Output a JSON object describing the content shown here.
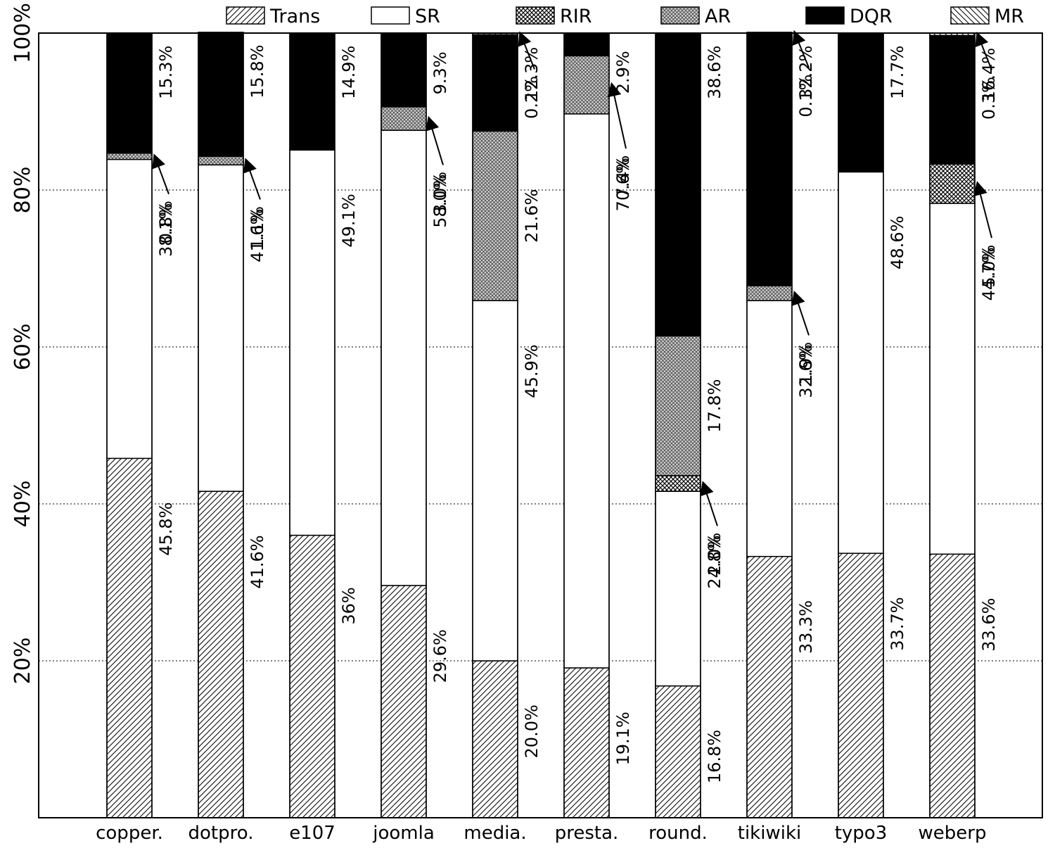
{
  "chart_data": {
    "type": "bar",
    "stacked": true,
    "categories": [
      "copper.",
      "dotpro.",
      "e107",
      "joomla",
      "media.",
      "presta.",
      "round.",
      "tikiwiki",
      "typo3",
      "weberp"
    ],
    "series": [
      {
        "name": "Trans",
        "values": [
          45.8,
          41.6,
          36.0,
          29.6,
          20.0,
          19.1,
          16.8,
          33.3,
          33.7,
          33.6
        ]
      },
      {
        "name": "SR",
        "values": [
          38.1,
          41.6,
          49.1,
          58.0,
          45.9,
          70.6,
          24.8,
          32.6,
          48.6,
          44.7
        ]
      },
      {
        "name": "RIR",
        "values": [
          0,
          0,
          0,
          0,
          0,
          0,
          2.0,
          0,
          0,
          5.0
        ]
      },
      {
        "name": "AR",
        "values": [
          0.8,
          1.1,
          0,
          3.0,
          21.6,
          7.4,
          17.8,
          1.9,
          0,
          0
        ]
      },
      {
        "name": "DQR",
        "values": [
          15.3,
          15.8,
          14.9,
          9.3,
          12.3,
          2.9,
          38.6,
          32.2,
          17.7,
          16.4
        ]
      },
      {
        "name": "MR",
        "values": [
          0,
          0,
          0,
          0,
          0.2,
          0,
          0,
          0.1,
          0,
          0.3
        ]
      }
    ],
    "data_labels": [
      [
        "45.8%",
        "38.1%",
        "",
        "0.8%",
        "15.3%",
        ""
      ],
      [
        "41.6%",
        "41.6%",
        "",
        "1.1%",
        "15.8%",
        ""
      ],
      [
        "36%",
        "49.1%",
        "",
        "",
        "14.9%",
        ""
      ],
      [
        "29.6%",
        "58.0%",
        "",
        "3.0%",
        "9.3%",
        ""
      ],
      [
        "20.0%",
        "45.9%",
        "",
        "21.6%",
        "12.3%",
        "0.2%"
      ],
      [
        "19.1%",
        "70.6%",
        "",
        "7.4%",
        "2.9%",
        ""
      ],
      [
        "16.8%",
        "24.8%",
        "2.0%",
        "17.8%",
        "38.6%",
        ""
      ],
      [
        "33.3%",
        "32.6%",
        "",
        "1.9%",
        "32.2%",
        "0.1%"
      ],
      [
        "33.7%",
        "48.6%",
        "",
        "",
        "17.7%",
        ""
      ],
      [
        "33.6%",
        "44.7%",
        "5.0%",
        "",
        "16.4%",
        "0.3%"
      ]
    ],
    "yticks": [
      "20%",
      "40%",
      "60%",
      "80%",
      "100%"
    ],
    "ylim": [
      0,
      100
    ],
    "title": "",
    "xlabel": "",
    "ylabel": "",
    "grid": "horizontal dotted",
    "legend_position": "top"
  },
  "colors": {
    "Trans": "hatch-diagonal",
    "SR": "#ffffff",
    "RIR": "crosshatch-dense",
    "AR": "crosshatch-light",
    "DQR": "#000000",
    "MR": "hatch-diagonal-reverse"
  }
}
